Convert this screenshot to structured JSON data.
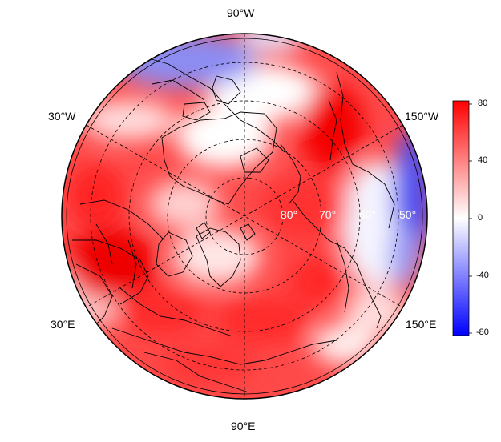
{
  "map": {
    "projection": "north polar stereographic",
    "longitude_labels": [
      "90°W",
      "30°W",
      "150°W",
      "30°E",
      "150°E",
      "90°E"
    ],
    "latitude_labels": [
      "80°",
      "70°",
      "60°",
      "50°"
    ],
    "colors": {
      "positive_max": "#ff0000",
      "neutral": "#ffffff",
      "negative_max": "#0000ff",
      "coastline": "#000000"
    }
  },
  "colorbar": {
    "ticks": [
      "80",
      "40",
      "0",
      "-40",
      "-80"
    ],
    "tick_values": [
      80,
      40,
      0,
      -40,
      -80
    ],
    "range": [
      -80,
      80
    ]
  }
}
